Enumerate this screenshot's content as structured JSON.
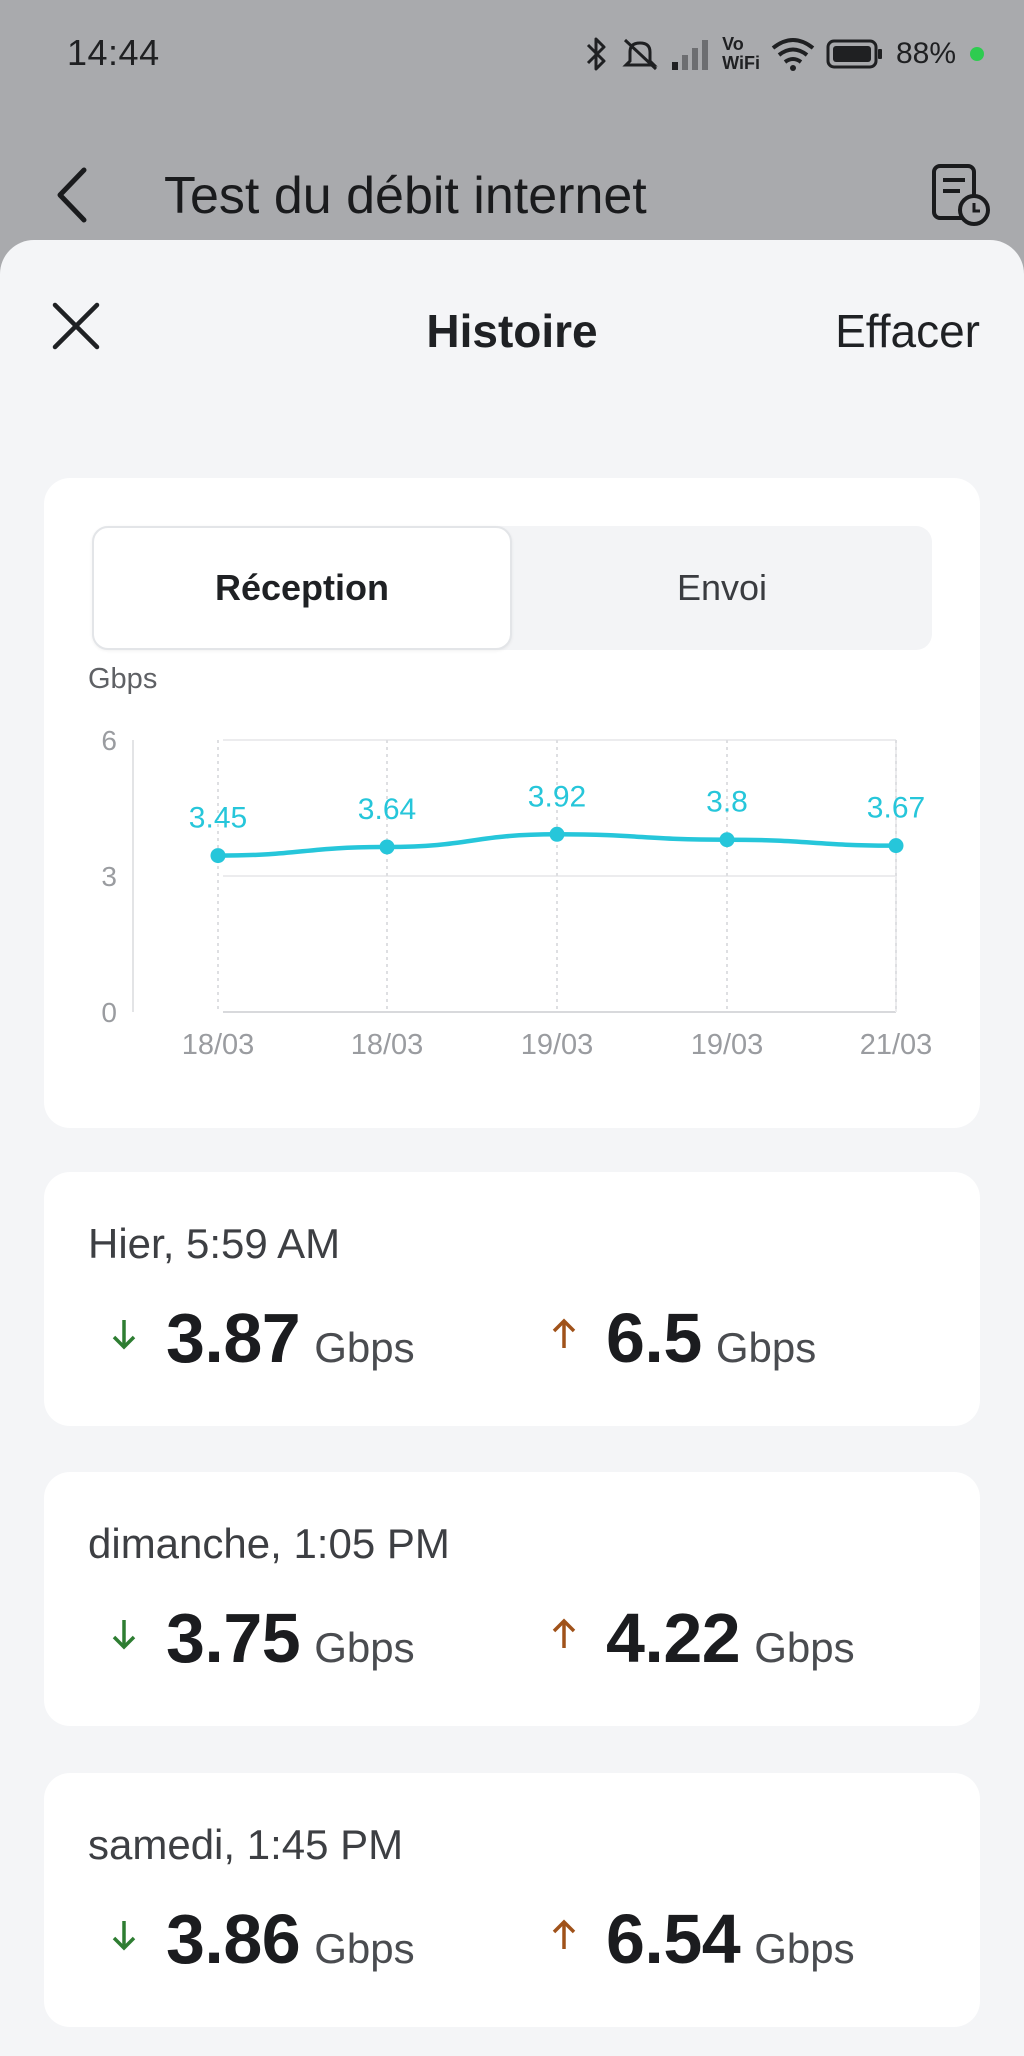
{
  "status_bar": {
    "time": "14:44",
    "volte_top": "Vo",
    "volte_bottom": "WiFi",
    "battery": "88%",
    "icons": [
      "bluetooth-icon",
      "mute-icon",
      "signal-icon",
      "wifi-icon",
      "battery-icon"
    ]
  },
  "background_screen": {
    "title": "Test du débit internet"
  },
  "sheet": {
    "title": "Histoire",
    "clear_label": "Effacer"
  },
  "tabs": [
    {
      "label": "Réception",
      "active": true
    },
    {
      "label": "Envoi",
      "active": false
    }
  ],
  "chart_data": {
    "type": "line",
    "ylabel": "Gbps",
    "ylim": [
      0,
      6
    ],
    "yticks": [
      0,
      3,
      6
    ],
    "x": [
      "18/03",
      "18/03",
      "19/03",
      "19/03",
      "21/03"
    ],
    "series": [
      {
        "values": [
          3.45,
          3.64,
          3.92,
          3.8,
          3.67
        ]
      }
    ],
    "data_labels": [
      "3.45",
      "3.64",
      "3.92",
      "3.8",
      "3.67"
    ],
    "color": "#26c6da",
    "grid": true
  },
  "history": [
    {
      "date": "Hier, 5:59 AM",
      "download": "3.87",
      "upload": "6.5",
      "unit": "Gbps"
    },
    {
      "date": "dimanche, 1:05 PM",
      "download": "3.75",
      "upload": "4.22",
      "unit": "Gbps"
    },
    {
      "date": "samedi, 1:45 PM",
      "download": "3.86",
      "upload": "6.54",
      "unit": "Gbps"
    }
  ],
  "colors": {
    "download_arrow": "#2e7d32",
    "upload_arrow": "#a0521a",
    "chart_line": "#26c6da"
  }
}
